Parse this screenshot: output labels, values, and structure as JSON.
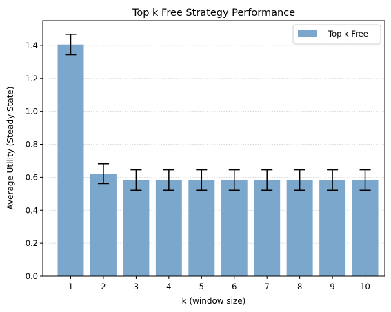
{
  "chart_data": {
    "type": "bar",
    "title": "Top k Free Strategy Performance",
    "xlabel": "k (window size)",
    "ylabel": "Average Utility (Steady State)",
    "categories": [
      "1",
      "2",
      "3",
      "4",
      "5",
      "6",
      "7",
      "8",
      "9",
      "10"
    ],
    "series": [
      {
        "name": "Top k Free",
        "values": [
          1.405,
          0.622,
          0.583,
          0.583,
          0.583,
          0.583,
          0.583,
          0.583,
          0.583,
          0.583
        ],
        "errors": [
          0.062,
          0.06,
          0.062,
          0.062,
          0.062,
          0.062,
          0.062,
          0.062,
          0.062,
          0.062
        ]
      }
    ],
    "ylim": [
      0,
      1.55
    ],
    "yticks": [
      "0.0",
      "0.2",
      "0.4",
      "0.6",
      "0.8",
      "1.0",
      "1.2",
      "1.4"
    ],
    "grid": "y-dotted",
    "legend_position": "top-right",
    "bar_color": "#7ba7cc",
    "error_color": "#000000"
  }
}
